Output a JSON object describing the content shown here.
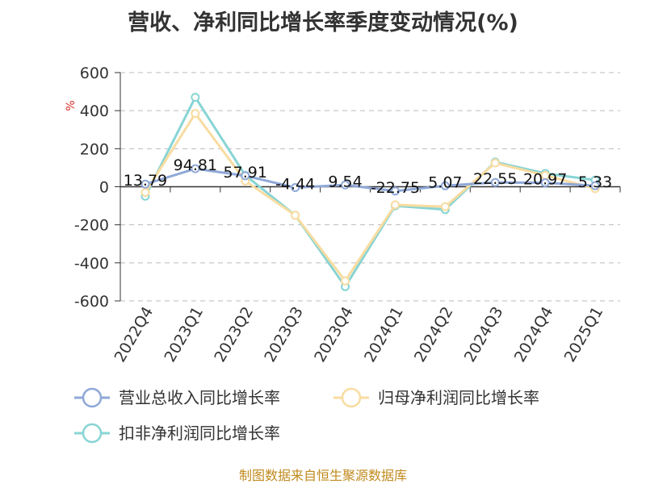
{
  "title": "营收、净利同比增长率季度变动情况(%)",
  "footer": "制图数据来自恒生聚源数据库",
  "chart_data": {
    "type": "line",
    "title": "营收、净利同比增长率季度变动情况(%)",
    "y_unit": "%",
    "categories": [
      "2022Q4",
      "2023Q1",
      "2023Q2",
      "2023Q3",
      "2023Q4",
      "2024Q1",
      "2024Q2",
      "2024Q3",
      "2024Q4",
      "2025Q1"
    ],
    "ylim": [
      -600,
      600
    ],
    "yticks": [
      600,
      400,
      200,
      0,
      -200,
      -400,
      -600
    ],
    "ytick_labels": [
      "600",
      "400",
      "200",
      "0",
      "-200",
      "-400",
      "-600"
    ],
    "grid": true,
    "legend_position": "bottom",
    "series": [
      {
        "name": "营业总收入同比增长率",
        "color": "#8fa8d8",
        "values": [
          13.79,
          94.81,
          57.91,
          -4.44,
          9.54,
          -22.75,
          5.07,
          22.55,
          20.97,
          5.33
        ],
        "labels": [
          "13.79",
          "94.81",
          "57.91",
          "-4.44",
          "9.54",
          "-22.75",
          "5.07",
          "22.55",
          "20.97",
          "5.33"
        ]
      },
      {
        "name": "归母净利润同比增长率",
        "color": "#f8dca0",
        "values": [
          -30,
          385,
          30,
          -150,
          -495,
          -95,
          -105,
          125,
          60,
          -10
        ]
      },
      {
        "name": "扣非净利润同比增长率",
        "color": "#88d4d4",
        "values": [
          -50,
          470,
          60,
          -150,
          -525,
          -100,
          -120,
          130,
          70,
          35
        ]
      }
    ]
  }
}
